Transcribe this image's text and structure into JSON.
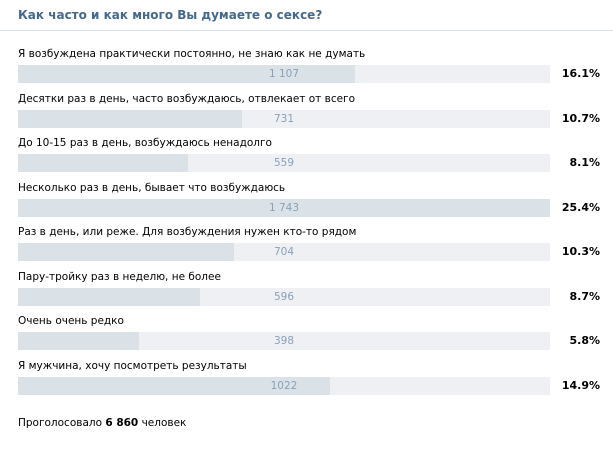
{
  "poll": {
    "title": "Как часто и как много Вы думаете о сексе?",
    "options": [
      {
        "label": "Я возбуждена практически постоянно, не знаю как не думать",
        "count": "1 107",
        "percent": "16.1%",
        "share": 0.161
      },
      {
        "label": "Десятки раз в день, часто возбуждаюсь, отвлекает от всего",
        "count": "731",
        "percent": "10.7%",
        "share": 0.107
      },
      {
        "label": "До 10-15 раз в день, возбуждаюсь ненадолго",
        "count": "559",
        "percent": "8.1%",
        "share": 0.081
      },
      {
        "label": "Несколько раз в день, бывает что возбуждаюсь",
        "count": "1 743",
        "percent": "25.4%",
        "share": 0.254
      },
      {
        "label": "Раз в день, или реже. Для возбуждения нужен кто-то рядом",
        "count": "704",
        "percent": "10.3%",
        "share": 0.103
      },
      {
        "label": "Пару-тройку раз в неделю, не более",
        "count": "596",
        "percent": "8.7%",
        "share": 0.087
      },
      {
        "label": "Очень очень редко",
        "count": "398",
        "percent": "5.8%",
        "share": 0.058
      },
      {
        "label": "Я мужчина, хочу посмотреть результаты",
        "count": "1022",
        "percent": "14.9%",
        "share": 0.149
      }
    ],
    "footer": {
      "prefix": "Проголосовало",
      "total": "6 860",
      "suffix": "человек"
    }
  },
  "colors": {
    "title": "#45688e",
    "bar_fill": "#dae2e8",
    "bar_track": "#eef0f3",
    "count_text": "#8aa0b8"
  }
}
